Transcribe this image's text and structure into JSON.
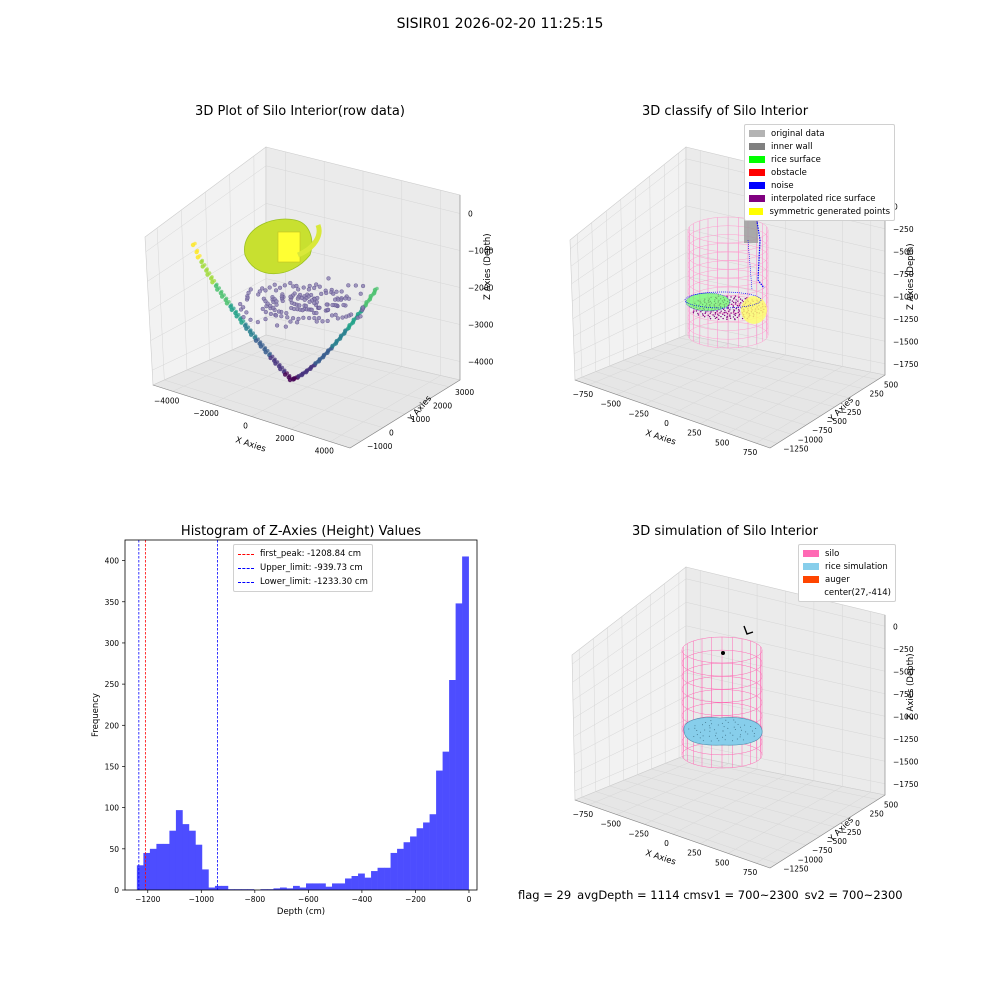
{
  "figure": {
    "title": "SISIR01 2026-02-20 11:25:15"
  },
  "panels": {
    "raw": {
      "title": "3D Plot of Silo Interior(row data)",
      "x_label": "X Axies",
      "y_label": "Y Axies",
      "z_label": "Z Axies (Depth)",
      "x_ticks": [
        "−4000",
        "−2000",
        "0",
        "2000",
        "4000"
      ],
      "y_ticks": [
        "−1000",
        "0",
        "1000",
        "2000",
        "3000"
      ],
      "z_ticks": [
        "0",
        "−1000",
        "−2000",
        "−3000",
        "−4000"
      ]
    },
    "classify": {
      "title": "3D classify of Silo Interior",
      "x_label": "X Axies",
      "y_label": "Y Axies",
      "z_label": "Z Axies (Depth)",
      "x_ticks": [
        "−750",
        "−500",
        "−250",
        "0",
        "250",
        "500",
        "750"
      ],
      "y_ticks": [
        "−1250",
        "−1000",
        "−750",
        "−500",
        "−250",
        "0",
        "250",
        "500"
      ],
      "z_ticks": [
        "0",
        "−250",
        "−500",
        "−750",
        "−1000",
        "−1250",
        "−1500",
        "−1750"
      ],
      "legend": [
        {
          "label": "original data",
          "color": "#b3b3b3"
        },
        {
          "label": "inner wall",
          "color": "#808080"
        },
        {
          "label": "rice surface",
          "color": "#00ff00"
        },
        {
          "label": "obstacle",
          "color": "#ff0000"
        },
        {
          "label": "noise",
          "color": "#0000ff"
        },
        {
          "label": "interpolated rice surface",
          "color": "#800080"
        },
        {
          "label": "symmetric generated points",
          "color": "#ffff00"
        }
      ]
    },
    "simulation": {
      "title": "3D simulation of Silo Interior",
      "x_label": "X Axies",
      "y_label": "Y Axies",
      "z_label": "Z Axies (Depth)",
      "x_ticks": [
        "−750",
        "−500",
        "−250",
        "0",
        "250",
        "500",
        "750"
      ],
      "y_ticks": [
        "−1250",
        "−1000",
        "−750",
        "−500",
        "−250",
        "0",
        "250",
        "500"
      ],
      "z_ticks": [
        "0",
        "−250",
        "−500",
        "−750",
        "−1000",
        "−1250",
        "−1500",
        "−1750"
      ],
      "legend": [
        {
          "label": "silo",
          "color": "#ff69b4"
        },
        {
          "label": "rice simulation",
          "color": "#87ceeb"
        },
        {
          "label": "auger",
          "color": "#ff4500"
        },
        {
          "label": "center(27,-414)",
          "color": ""
        }
      ]
    }
  },
  "status": {
    "flag": "flag = 29",
    "avg_depth": "avgDepth = 1114 cm",
    "sv1": "sv1 = 700~2300",
    "sv2": "sv2 = 700~2300"
  },
  "chart_data": [
    {
      "type": "bar",
      "title": "Histogram of Z-Axies (Height) Values",
      "xlabel": "Depth (cm)",
      "ylabel": "Frequency",
      "xlim": [
        -1285,
        30
      ],
      "ylim": [
        0,
        425
      ],
      "x_ticks": [
        -1200,
        -1000,
        -800,
        -600,
        -400,
        -200,
        0
      ],
      "y_ticks": [
        0,
        50,
        100,
        150,
        200,
        250,
        300,
        350,
        400
      ],
      "bar_color": "#4d4dff",
      "bin_width": 24.3,
      "bin_starts": [
        -1240.6,
        -1216.3,
        -1192.0,
        -1167.7,
        -1143.4,
        -1119.1,
        -1094.8,
        -1070.5,
        -1046.2,
        -1021.9,
        -997.6,
        -973.3,
        -949.0,
        -924.7,
        -900.4,
        -876.1,
        -851.8,
        -827.5,
        -803.2,
        -778.9,
        -754.6,
        -730.3,
        -706.0,
        -681.7,
        -657.4,
        -633.1,
        -608.8,
        -584.5,
        -560.2,
        -535.9,
        -511.6,
        -487.3,
        -463.0,
        -438.7,
        -414.4,
        -390.1,
        -365.8,
        -341.5,
        -317.2,
        -292.9,
        -268.6,
        -244.3,
        -220.0,
        -195.7,
        -171.4,
        -147.1,
        -122.8,
        -98.5,
        -74.2,
        -49.9,
        -25.6
      ],
      "values": [
        30,
        45,
        50,
        56,
        56,
        72,
        97,
        80,
        72,
        55,
        25,
        3,
        5,
        5,
        1,
        1,
        1,
        1,
        0,
        1,
        1,
        2,
        3,
        2,
        5,
        3,
        8,
        8,
        8,
        4,
        8,
        8,
        14,
        17,
        20,
        15,
        23,
        27,
        27,
        45,
        50,
        58,
        65,
        75,
        82,
        92,
        145,
        168,
        255,
        348,
        405
      ],
      "lines": [
        {
          "name": "first_peak: -1208.84 cm",
          "x": -1208.84,
          "color": "#ff0000"
        },
        {
          "name": "Upper_limit: -939.73 cm",
          "x": -939.73,
          "color": "#0000ff"
        },
        {
          "name": "Lower_limit: -1233.30 cm",
          "x": -1233.3,
          "color": "#0000ff"
        }
      ],
      "legend_position": "top-center"
    }
  ]
}
